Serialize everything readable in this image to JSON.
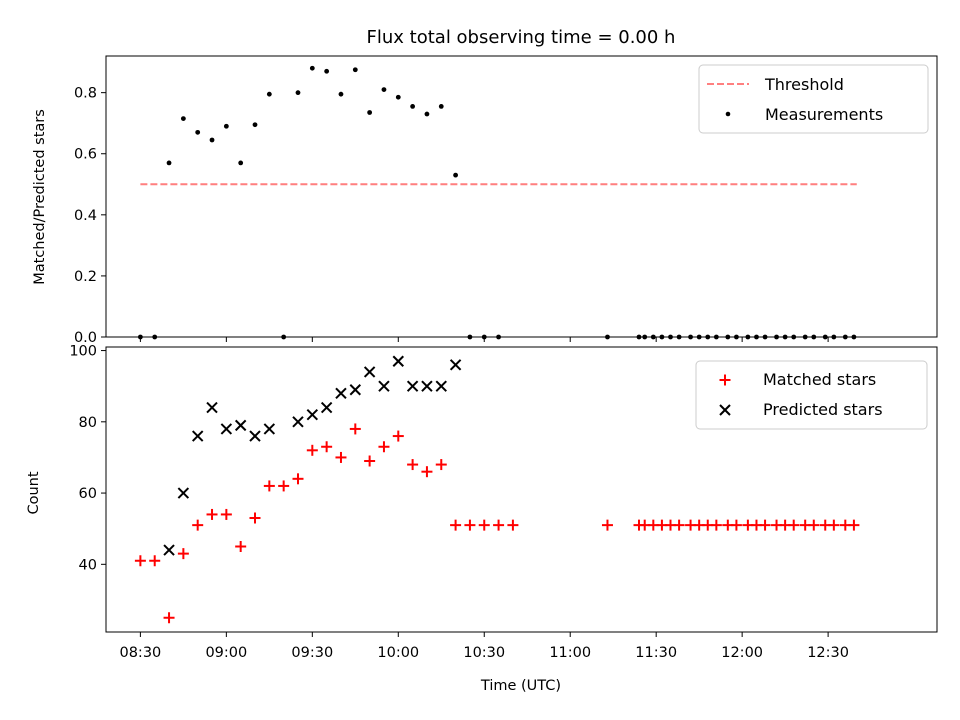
{
  "title": "Flux total observing time = 0.00 h",
  "colors": {
    "threshold": "#ff7f7f",
    "measurement": "#000000",
    "matched": "#ff0000",
    "predicted": "#000000"
  },
  "chart_data": [
    {
      "type": "scatter",
      "title": "Flux total observing time = 0.00 h",
      "xlabel": "",
      "ylabel": "Matched/Predicted stars",
      "xlim": [
        "08:18",
        "13:08"
      ],
      "ylim": [
        0,
        0.92
      ],
      "yticks": [
        0.0,
        0.2,
        0.4,
        0.6,
        0.8
      ],
      "yticklabels": [
        "0.0",
        "0.2",
        "0.4",
        "0.6",
        "0.8"
      ],
      "legend": {
        "position": "top-right",
        "entries": [
          "Threshold",
          "Measurements"
        ]
      },
      "series": [
        {
          "name": "Threshold",
          "style": "dashed-line",
          "x": [
            "08:30",
            "12:40"
          ],
          "y": [
            0.5,
            0.5
          ]
        },
        {
          "name": "Measurements",
          "style": "dot",
          "x": [
            "08:30",
            "08:35",
            "08:40",
            "08:45",
            "08:50",
            "08:55",
            "09:00",
            "09:05",
            "09:10",
            "09:15",
            "09:20",
            "09:25",
            "09:30",
            "09:35",
            "09:40",
            "09:45",
            "09:50",
            "09:55",
            "10:00",
            "10:05",
            "10:10",
            "10:15",
            "10:20",
            "10:25",
            "10:30",
            "10:35",
            "11:13",
            "11:24",
            "11:26",
            "11:29",
            "11:32",
            "11:35",
            "11:38",
            "11:42",
            "11:45",
            "11:48",
            "11:51",
            "11:55",
            "11:58",
            "12:02",
            "12:05",
            "12:08",
            "12:12",
            "12:15",
            "12:18",
            "12:22",
            "12:25",
            "12:29",
            "12:32",
            "12:36",
            "12:39"
          ],
          "y": [
            0.0,
            0.0,
            0.57,
            0.715,
            0.67,
            0.645,
            0.69,
            0.57,
            0.695,
            0.795,
            0.0,
            0.8,
            0.88,
            0.87,
            0.795,
            0.875,
            0.735,
            0.81,
            0.785,
            0.755,
            0.73,
            0.755,
            0.53,
            0.0,
            0.0,
            0.0,
            0.0,
            0.0,
            0.0,
            0.0,
            0.0,
            0.0,
            0.0,
            0.0,
            0.0,
            0.0,
            0.0,
            0.0,
            0.0,
            0.0,
            0.0,
            0.0,
            0.0,
            0.0,
            0.0,
            0.0,
            0.0,
            0.0,
            0.0,
            0.0,
            0.0
          ]
        }
      ]
    },
    {
      "type": "scatter",
      "xlabel": "Time (UTC)",
      "ylabel": "Count",
      "xlim": [
        "08:18",
        "13:08"
      ],
      "ylim": [
        21,
        101
      ],
      "yticks": [
        40,
        60,
        80,
        100
      ],
      "yticklabels": [
        "40",
        "60",
        "80",
        "100"
      ],
      "xticks": [
        "08:30",
        "09:00",
        "09:30",
        "10:00",
        "10:30",
        "11:00",
        "11:30",
        "12:00",
        "12:30"
      ],
      "xticklabels": [
        "08:30",
        "09:00",
        "09:30",
        "10:00",
        "10:30",
        "11:00",
        "11:30",
        "12:00",
        "12:30"
      ],
      "legend": {
        "position": "top-right",
        "entries": [
          "Matched stars",
          "Predicted stars"
        ]
      },
      "series": [
        {
          "name": "Matched stars",
          "style": "plus",
          "x": [
            "08:30",
            "08:35",
            "08:40",
            "08:45",
            "08:50",
            "08:55",
            "09:00",
            "09:05",
            "09:10",
            "09:15",
            "09:20",
            "09:25",
            "09:30",
            "09:35",
            "09:40",
            "09:45",
            "09:50",
            "09:55",
            "10:00",
            "10:05",
            "10:10",
            "10:15",
            "10:20",
            "10:25",
            "10:30",
            "10:35",
            "10:40",
            "11:13",
            "11:24",
            "11:26",
            "11:29",
            "11:32",
            "11:35",
            "11:38",
            "11:42",
            "11:45",
            "11:48",
            "11:51",
            "11:55",
            "11:58",
            "12:02",
            "12:05",
            "12:08",
            "12:12",
            "12:15",
            "12:18",
            "12:22",
            "12:25",
            "12:29",
            "12:32",
            "12:36",
            "12:39"
          ],
          "y": [
            41,
            41,
            25,
            43,
            51,
            54,
            54,
            45,
            53,
            62,
            62,
            64,
            72,
            73,
            70,
            78,
            69,
            73,
            76,
            68,
            66,
            68,
            51,
            51,
            51,
            51,
            51,
            51,
            51,
            51,
            51,
            51,
            51,
            51,
            51,
            51,
            51,
            51,
            51,
            51,
            51,
            51,
            51,
            51,
            51,
            51,
            51,
            51,
            51,
            51,
            51,
            51
          ]
        },
        {
          "name": "Predicted stars",
          "style": "x",
          "x": [
            "08:40",
            "08:45",
            "08:50",
            "08:55",
            "09:00",
            "09:05",
            "09:10",
            "09:15",
            "09:25",
            "09:30",
            "09:35",
            "09:40",
            "09:45",
            "09:50",
            "09:55",
            "10:00",
            "10:05",
            "10:10",
            "10:15",
            "10:20"
          ],
          "y": [
            44,
            60,
            76,
            84,
            78,
            79,
            76,
            78,
            80,
            82,
            84,
            88,
            89,
            94,
            90,
            97,
            90,
            90,
            90,
            96
          ]
        }
      ]
    }
  ]
}
